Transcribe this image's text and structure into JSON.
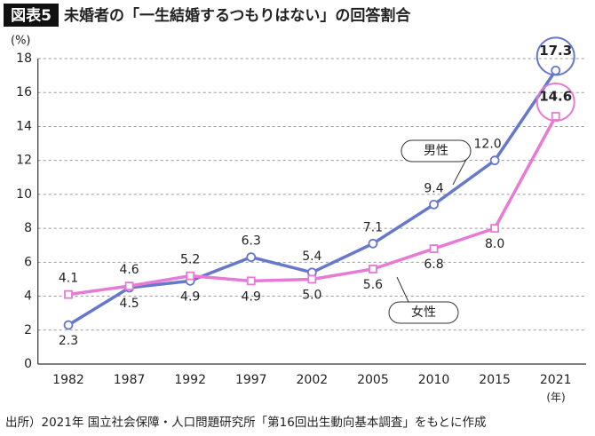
{
  "chart_data": {
    "type": "line",
    "label": "図表5",
    "title": "未婚者の「一生結婚するつもりはない」の回答割合",
    "y_unit": "(%)",
    "x_unit": "(年)",
    "source": "出所）2021年 国立社会保障・人口問題研究所「第16回出生動向基本調査」をもとに作成",
    "categories": [
      "1982",
      "1987",
      "1992",
      "1997",
      "2002",
      "2005",
      "2010",
      "2015",
      "2021"
    ],
    "series": [
      {
        "name": "男性",
        "color": "#6678cc",
        "marker": "circle",
        "values": [
          2.3,
          4.5,
          4.9,
          6.3,
          5.4,
          7.1,
          9.4,
          12.0,
          17.3
        ],
        "value_labels": [
          "2.3",
          "4.5",
          "4.9",
          "6.3",
          "5.4",
          "7.1",
          "9.4",
          "12.0",
          "17.3"
        ]
      },
      {
        "name": "女性",
        "color": "#e67ad4",
        "marker": "square",
        "values": [
          4.1,
          4.6,
          5.2,
          4.9,
          5.0,
          5.6,
          6.8,
          8.0,
          14.6
        ],
        "value_labels": [
          "4.1",
          "4.6",
          "5.2",
          "4.9",
          "5.0",
          "5.6",
          "6.8",
          "8.0",
          "14.6"
        ]
      }
    ],
    "ylim": [
      0,
      18
    ],
    "yticks": [
      0,
      2,
      4,
      6,
      8,
      10,
      12,
      14,
      16,
      18
    ],
    "grid": true
  }
}
